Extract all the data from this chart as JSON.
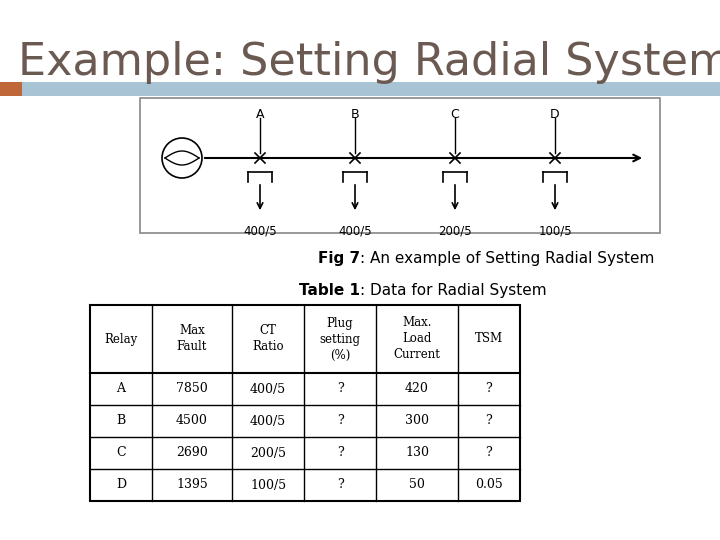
{
  "title": "Example: Setting Radial System",
  "title_color": "#6b5a52",
  "title_fontsize": 32,
  "bg_color": "#ffffff",
  "blue_bar_color": "#a8c4d4",
  "orange_sq_color": "#c0673a",
  "fig_caption_bold": "Fig 7",
  "fig_caption_rest": ": An example of Setting Radial System",
  "table_title_bold": "Table 1",
  "table_title_rest": ": Data for Radial System",
  "relay_labels": [
    "A",
    "B",
    "C",
    "D"
  ],
  "ct_ratios": [
    "400/5",
    "400/5",
    "200/5",
    "100/5"
  ],
  "table_headers": [
    "Relay",
    "Max\nFault",
    "CT\nRatio",
    "Plug\nsetting\n(%)",
    "Max.\nLoad\nCurrent",
    "TSM"
  ],
  "table_data": [
    [
      "A",
      "7850",
      "400/5",
      "?",
      "420",
      "?"
    ],
    [
      "B",
      "4500",
      "400/5",
      "?",
      "300",
      "?"
    ],
    [
      "C",
      "2690",
      "200/5",
      "?",
      "130",
      "?"
    ],
    [
      "D",
      "1395",
      "100/5",
      "?",
      "50",
      "0.05"
    ]
  ]
}
